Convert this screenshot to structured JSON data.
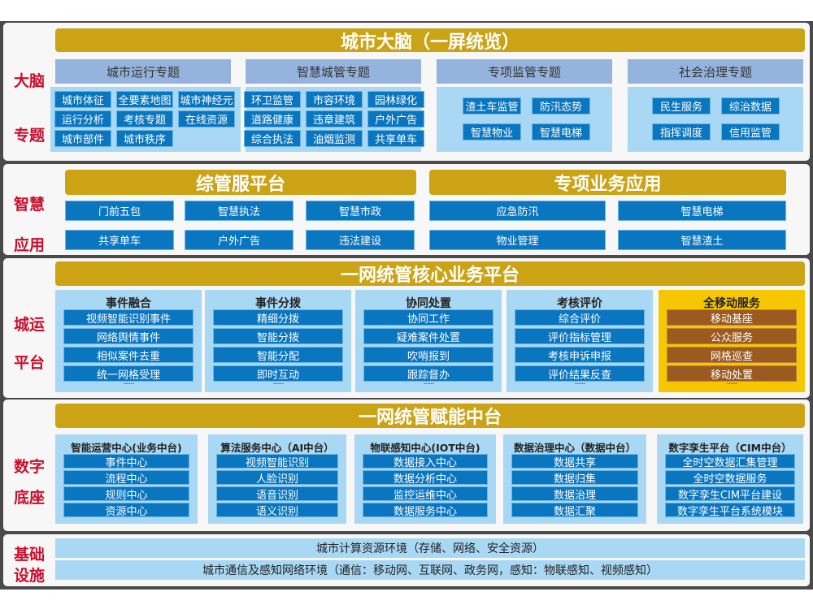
{
  "brain": {
    "title": "城市大脑（一屏统览）",
    "side": [
      "大脑",
      "专题"
    ],
    "groups": [
      {
        "header": "城市运行专题",
        "items": [
          "城市体征",
          "全要素地图",
          "城市神经元",
          "运行分析",
          "考核专题",
          "在线资源",
          "城市部件",
          "城市秩序"
        ]
      },
      {
        "header": "智慧城管专题",
        "items": [
          "环卫监管",
          "市容环境",
          "园林绿化",
          "道路健康",
          "违章建筑",
          "户外广告",
          "综合执法",
          "油烟监测",
          "共享单车"
        ]
      },
      {
        "header": "专项监管专题",
        "items": [
          "渣土车监管",
          "防汛态势",
          "智慧物业",
          "智慧电梯"
        ]
      },
      {
        "header": "社会治理专题",
        "items": [
          "民生服务",
          "综治数据",
          "指挥调度",
          "信用监管"
        ]
      }
    ]
  },
  "apps": {
    "side": [
      "智慧",
      "应用"
    ],
    "left": {
      "title": "综管服平台",
      "items": [
        "门前五包",
        "智慧执法",
        "智慧市政",
        "共享单车",
        "户外广告",
        "违法建设"
      ]
    },
    "right": {
      "title": "专项业务应用",
      "items": [
        "应急防汛",
        "智慧电梯",
        "物业管理",
        "智慧渣土"
      ]
    }
  },
  "platform": {
    "title": "一网统管核心业务平台",
    "side": [
      "城运",
      "平台"
    ],
    "columns": [
      {
        "header": "事件融合",
        "items": [
          "视频智能识别事件",
          "网络舆情事件",
          "相似案件去重",
          "统一网格受理"
        ],
        "more": "······"
      },
      {
        "header": "事件分拨",
        "items": [
          "精细分拨",
          "智能分拨",
          "智能分配",
          "即时互动"
        ],
        "more": "······"
      },
      {
        "header": "协同处置",
        "items": [
          "协同工作",
          "疑难案件处置",
          "吹哨报到",
          "跟踪督办"
        ],
        "more": "······"
      },
      {
        "header": "考核评价",
        "items": [
          "综合评价",
          "评价指标管理",
          "考核申诉申报",
          "评价结果反查"
        ],
        "more": "······"
      },
      {
        "header": "全移动服务",
        "items": [
          "移动基座",
          "公众服务",
          "网格巡查",
          "移动处置"
        ],
        "more": "······",
        "highlight": true
      }
    ]
  },
  "base": {
    "title": "一网统管赋能中台",
    "side": [
      "数字",
      "底座"
    ],
    "columns": [
      {
        "header": "智能运营中心(业务中台)",
        "items": [
          "事件中心",
          "流程中心",
          "规则中心",
          "资源中心"
        ]
      },
      {
        "header": "算法服务中心（AI中台）",
        "items": [
          "视频智能识别",
          "人脸识别",
          "语音识别",
          "语义识别"
        ]
      },
      {
        "header": "物联感知中心(IOT中台)",
        "items": [
          "数据接入中心",
          "数据分析中心",
          "监控运维中心",
          "数据服务中心"
        ]
      },
      {
        "header": "数据治理中心（数据中台）",
        "items": [
          "数据共享",
          "数据归集",
          "数据治理",
          "数据汇聚"
        ]
      },
      {
        "header": "数字孪生平台（CIM中台）",
        "items": [
          "全时空数据汇集管理",
          "全时空数据服务",
          "数字孪生CIM平台建设",
          "数字孪生平台系统模块"
        ]
      }
    ]
  },
  "infra": {
    "side": [
      "基础",
      "设施"
    ],
    "rows": [
      "城市计算资源环境（存储、网络、安全资源）",
      "城市通信及感知网络环境（通信：移动网、互联网、政务网，感知：物联感知、视频感知）"
    ]
  },
  "colors": {
    "gold": "#cba315",
    "blue": "#0b76c0",
    "light": "#a8d8f3",
    "header": "#94b4dd",
    "red": "#c8102e",
    "yellow": "#f6c700",
    "brown": "#9b5a20"
  }
}
